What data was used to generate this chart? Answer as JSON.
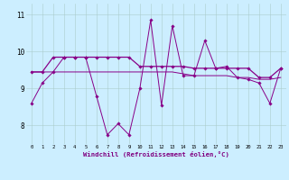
{
  "xlabel": "Windchill (Refroidissement éolien,°C)",
  "background_color": "#cceeff",
  "line_color": "#880088",
  "xlim": [
    -0.5,
    23.5
  ],
  "ylim": [
    7.5,
    11.3
  ],
  "yticks": [
    8,
    9,
    10,
    11
  ],
  "xticks": [
    0,
    1,
    2,
    3,
    4,
    5,
    6,
    7,
    8,
    9,
    10,
    11,
    12,
    13,
    14,
    15,
    16,
    17,
    18,
    19,
    20,
    21,
    22,
    23
  ],
  "series1_x": [
    0,
    1,
    2,
    3,
    4,
    5,
    6,
    7,
    8,
    9,
    10,
    11,
    12,
    13,
    14,
    15,
    16,
    17,
    18,
    19,
    20,
    21,
    22,
    23
  ],
  "series1_y": [
    8.6,
    9.15,
    9.45,
    9.85,
    9.85,
    9.85,
    8.8,
    7.75,
    8.05,
    7.75,
    9.0,
    10.85,
    8.55,
    10.7,
    9.35,
    9.35,
    10.3,
    9.55,
    9.6,
    9.3,
    9.25,
    9.15,
    8.6,
    9.55
  ],
  "series2_x": [
    0,
    1,
    2,
    3,
    4,
    5,
    6,
    7,
    8,
    9,
    10,
    11,
    12,
    13,
    14,
    15,
    16,
    17,
    18,
    19,
    20,
    21,
    22,
    23
  ],
  "series2_y": [
    9.45,
    9.45,
    9.85,
    9.85,
    9.85,
    9.85,
    9.85,
    9.85,
    9.85,
    9.85,
    9.6,
    9.6,
    9.6,
    9.6,
    9.6,
    9.55,
    9.55,
    9.55,
    9.55,
    9.55,
    9.55,
    9.3,
    9.3,
    9.55
  ],
  "series3_x": [
    0,
    1,
    2,
    3,
    4,
    5,
    6,
    7,
    8,
    9,
    10,
    11,
    12,
    13,
    14,
    15,
    16,
    17,
    18,
    19,
    20,
    21,
    22,
    23
  ],
  "series3_y": [
    9.45,
    9.45,
    9.45,
    9.45,
    9.45,
    9.45,
    9.45,
    9.45,
    9.45,
    9.45,
    9.45,
    9.45,
    9.45,
    9.45,
    9.4,
    9.35,
    9.35,
    9.35,
    9.35,
    9.3,
    9.3,
    9.25,
    9.25,
    9.3
  ]
}
